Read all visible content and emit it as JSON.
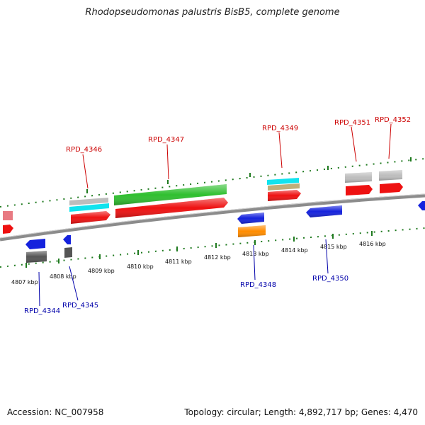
{
  "title": "Rhodopseudomonas palustris BisB5, complete genome",
  "footer": {
    "accession": "Accession: NC_007958",
    "summary": "Topology: circular; Length: 4,892,717 bp; Genes: 4,470"
  },
  "colors": {
    "forward_label": "#cc0000",
    "reverse_label": "#0000aa",
    "backbone": "#8c8c8c",
    "ticks": "#1f7a1f",
    "red": "#ee1111",
    "blue": "#1522dd",
    "green": "#2fbf2f",
    "cyan": "#11e3ee",
    "gray": "#bdbdbd",
    "orange": "#ff8c00",
    "tan": "#bfae7a",
    "pink": "#e87a82",
    "darkgray": "#555555"
  },
  "ticks": [
    {
      "label": "4807 kbp"
    },
    {
      "label": "4808 kbp"
    },
    {
      "label": "4809 kbp"
    },
    {
      "label": "4810 kbp"
    },
    {
      "label": "4811 kbp"
    },
    {
      "label": "4812 kbp"
    },
    {
      "label": "4813 kbp"
    },
    {
      "label": "4814 kbp"
    },
    {
      "label": "4815 kbp"
    },
    {
      "label": "4816 kbp"
    }
  ],
  "genes": [
    {
      "id": "RPD_4344",
      "strand": "reverse"
    },
    {
      "id": "RPD_4345",
      "strand": "reverse"
    },
    {
      "id": "RPD_4346",
      "strand": "forward"
    },
    {
      "id": "RPD_4347",
      "strand": "forward"
    },
    {
      "id": "RPD_4348",
      "strand": "reverse"
    },
    {
      "id": "RPD_4349",
      "strand": "forward"
    },
    {
      "id": "RPD_4350",
      "strand": "reverse"
    },
    {
      "id": "RPD_4351",
      "strand": "forward"
    },
    {
      "id": "RPD_4352",
      "strand": "forward"
    }
  ]
}
